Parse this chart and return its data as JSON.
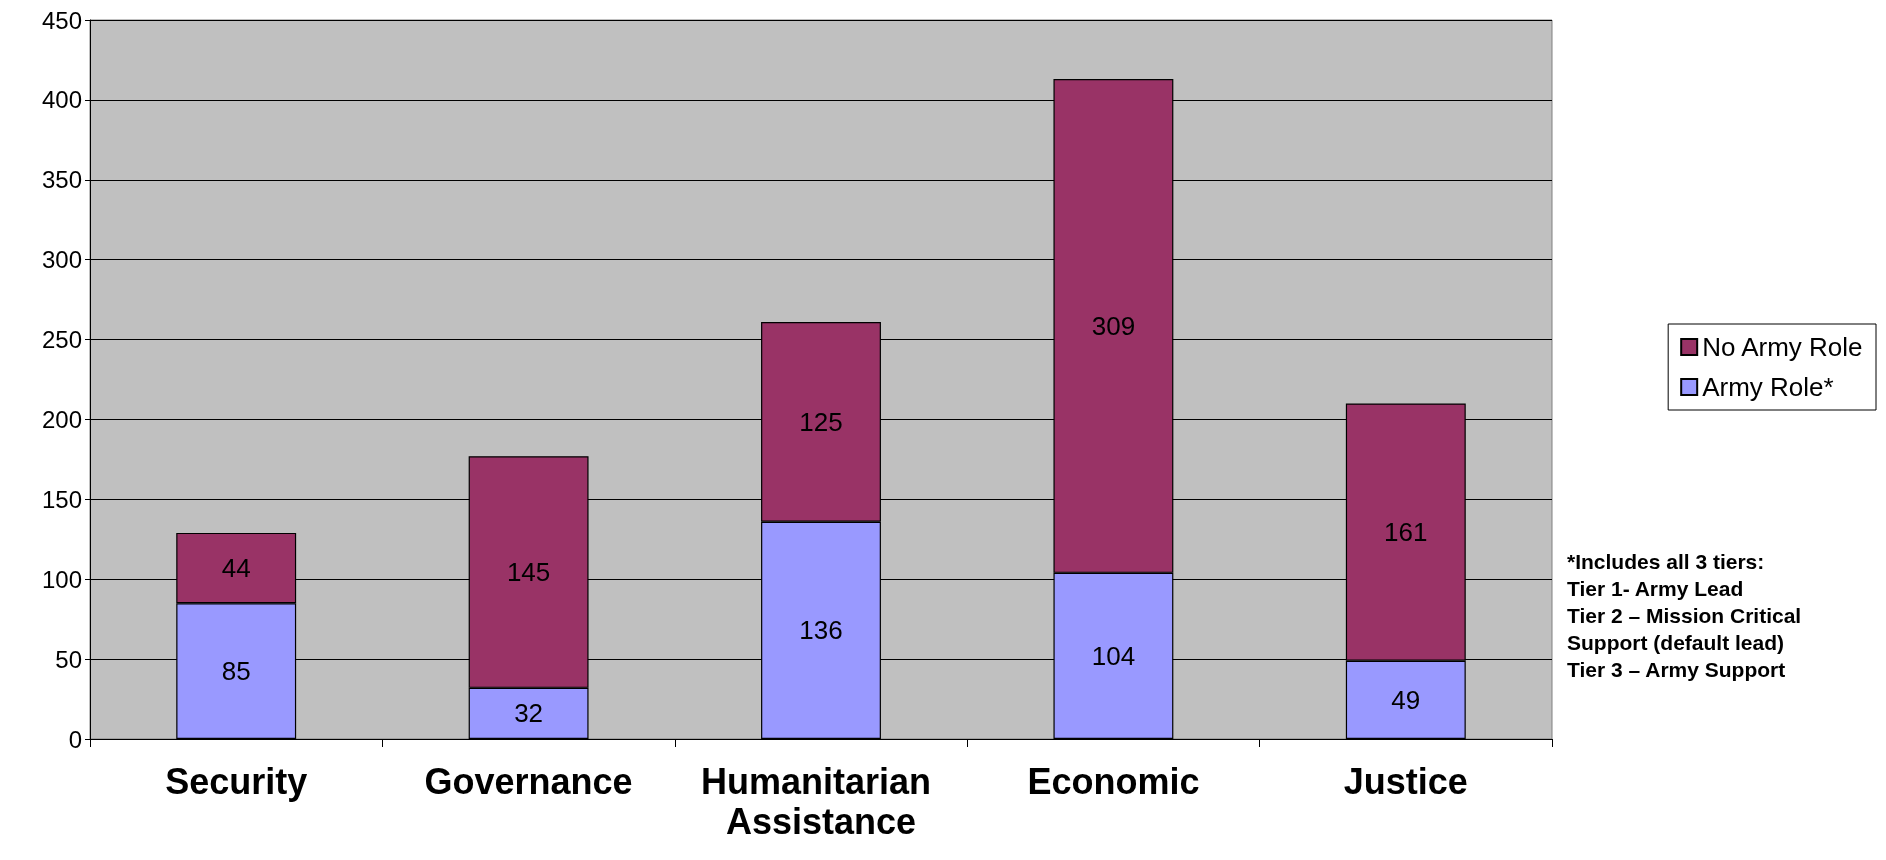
{
  "chart_data": {
    "type": "bar",
    "stacked": true,
    "categories": [
      "Security",
      "Governance",
      "Humanitarian Assistance",
      "Economic",
      "Justice"
    ],
    "series": [
      {
        "name": "Army Role*",
        "color": "#9999ff",
        "values": [
          85,
          32,
          136,
          104,
          49
        ]
      },
      {
        "name": "No Army Role",
        "color": "#993366",
        "values": [
          44,
          145,
          125,
          309,
          161
        ]
      }
    ],
    "ylim": [
      0,
      450
    ],
    "yticks": [
      0,
      50,
      100,
      150,
      200,
      250,
      300,
      350,
      400,
      450
    ],
    "grid": "y",
    "legend": "right",
    "data_labels": true,
    "annotations": [
      "*Includes all 3 tiers:\nTier 1- Army Lead\nTier 2 – Mission Critical\nSupport (default lead)\nTier 3 – Army Support"
    ]
  }
}
